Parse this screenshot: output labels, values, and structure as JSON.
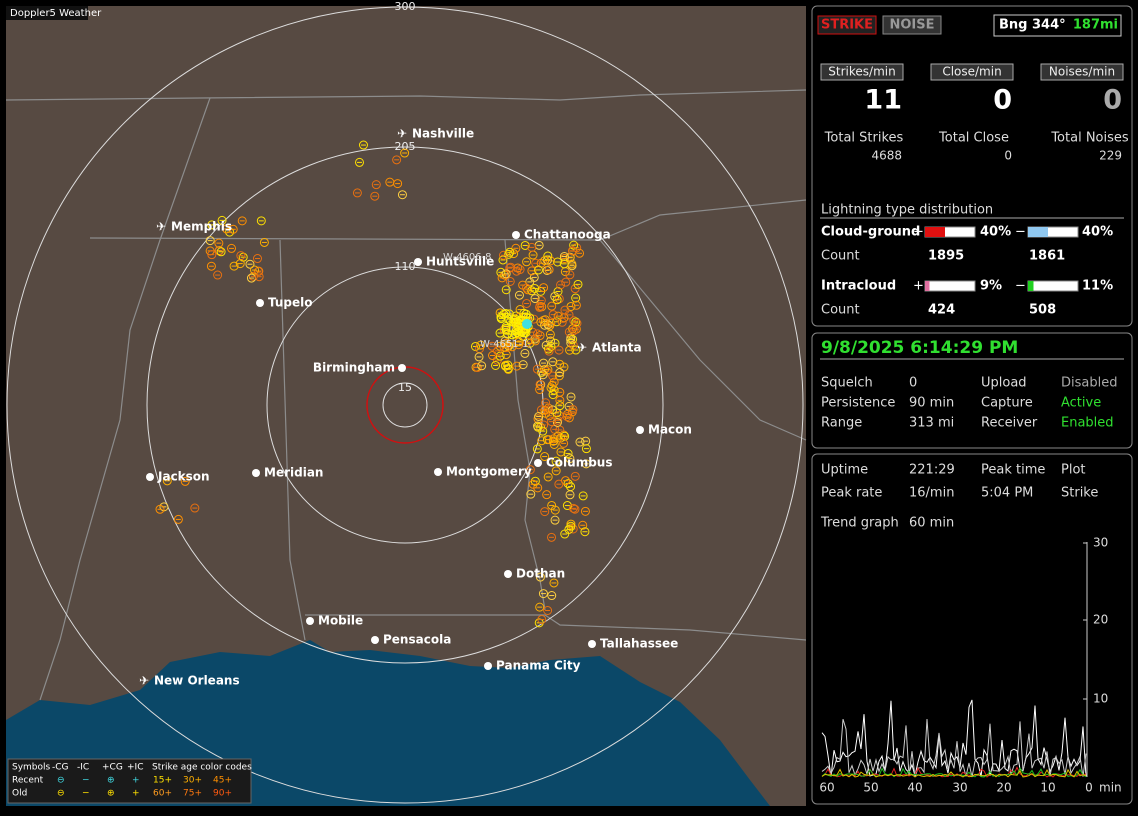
{
  "app": {
    "title": "Doppler5 Weather"
  },
  "map": {
    "ring_labels": [
      "300",
      "205",
      "110",
      "15"
    ],
    "cities": [
      "Nashville",
      "Memphis",
      "Chattanooga",
      "Huntsville",
      "Tupelo",
      "Atlanta",
      "Birmingham",
      "Macon",
      "Columbus",
      "Montgomery",
      "Meridian",
      "Jackson",
      "Dothan",
      "Mobile",
      "Pensacola",
      "Tallahassee",
      "Panama City",
      "New Orleans"
    ],
    "station_labels": [
      "W-4606-8",
      "W-4651-1"
    ]
  },
  "legend": {
    "symbols": "Symbols",
    "types": [
      "-CG",
      "-IC",
      "+CG",
      "+IC"
    ],
    "age_title": "Strike age color codes",
    "rows": [
      "Recent",
      "Old"
    ],
    "recent_ages": [
      "15+",
      "30+",
      "45+"
    ],
    "old_ages": [
      "60+",
      "75+",
      "90+"
    ]
  },
  "status": {
    "strike": "STRIKE",
    "noise": "NOISE",
    "bearing": "Bng 344°",
    "distance": "187mi"
  },
  "rates": {
    "headers": [
      "Strikes/min",
      "Close/min",
      "Noises/min"
    ],
    "values": [
      "11",
      "0",
      "0"
    ],
    "total_labels": [
      "Total Strikes",
      "Total Close",
      "Total Noises"
    ],
    "totals": [
      "4688",
      "0",
      "229"
    ]
  },
  "distribution": {
    "title": "Lightning type distribution",
    "rows": [
      {
        "label": "Cloud-ground",
        "pos_sign": "+",
        "pos": "40%",
        "neg_sign": "−",
        "neg": "40%",
        "count_label": "Count",
        "pos_count": "1895",
        "neg_count": "1861"
      },
      {
        "label": "Intracloud",
        "pos_sign": "+",
        "pos": "9%",
        "neg_sign": "−",
        "neg": "11%",
        "count_label": "Count",
        "pos_count": "424",
        "neg_count": "508"
      }
    ]
  },
  "clock": {
    "datetime": "9/8/2025 6:14:29 PM",
    "settings": [
      [
        "Squelch",
        "0",
        "Upload",
        "Disabled"
      ],
      [
        "Persistence",
        "90 min",
        "Capture",
        "Active"
      ],
      [
        "Range",
        "313 mi",
        "Receiver",
        "Enabled"
      ]
    ]
  },
  "stats": {
    "rows": [
      [
        "Uptime",
        "221:29",
        "Peak time",
        "Plot"
      ],
      [
        "Peak rate",
        "16/min",
        "5:04 PM",
        "Strike"
      ]
    ],
    "trend_label": "Trend graph",
    "trend_window": "60 min"
  },
  "trend": {
    "yticks": [
      "30",
      "20",
      "10"
    ],
    "xticks": [
      "60",
      "50",
      "40",
      "30",
      "20",
      "10",
      "0"
    ],
    "x_unit": "min"
  }
}
